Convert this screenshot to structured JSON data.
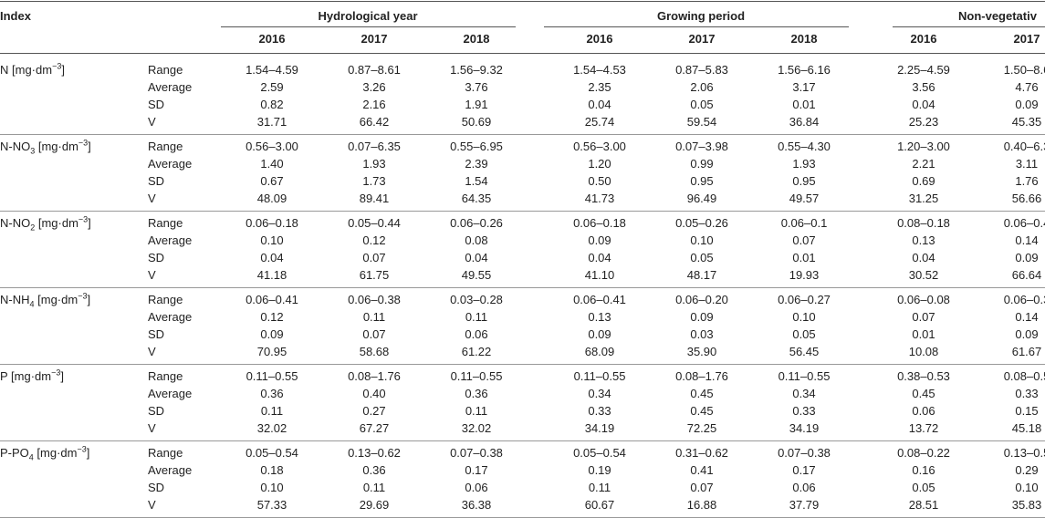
{
  "header": {
    "index": "Index",
    "groups": [
      {
        "title": "Hydrological year",
        "years": [
          "2016",
          "2017",
          "2018"
        ]
      },
      {
        "title": "Growing period",
        "years": [
          "2016",
          "2017",
          "2018"
        ]
      },
      {
        "title": "Non-vegetativ",
        "years": [
          "2016",
          "2017"
        ]
      }
    ]
  },
  "table": {
    "groups": [
      {
        "label": {
          "base": "N",
          "sub": "",
          "unit": " [mg·dm",
          "exp": "−3",
          "close": "]"
        },
        "rows": [
          {
            "stat": "Range",
            "cells": [
              "1.54–4.59",
              "0.87–8.61",
              "1.56–9.32",
              "1.54–4.53",
              "0.87–5.83",
              "1.56–6.16",
              "2.25–4.59",
              "1.50–8.6"
            ]
          },
          {
            "stat": "Average",
            "cells": [
              "2.59",
              "3.26",
              "3.76",
              "2.35",
              "2.06",
              "3.17",
              "3.56",
              "4.76"
            ]
          },
          {
            "stat": "SD",
            "cells": [
              "0.82",
              "2.16",
              "1.91",
              "0.04",
              "0.05",
              "0.01",
              "0.04",
              "0.09"
            ]
          },
          {
            "stat": "V",
            "cells": [
              "31.71",
              "66.42",
              "50.69",
              "25.74",
              "59.54",
              "36.84",
              "25.23",
              "45.35"
            ]
          }
        ]
      },
      {
        "label": {
          "base": "N-NO",
          "sub": "3",
          "unit": " [mg·dm",
          "exp": "−3",
          "close": "]"
        },
        "rows": [
          {
            "stat": "Range",
            "cells": [
              "0.56–3.00",
              "0.07–6.35",
              "0.55–6.95",
              "0.56–3.00",
              "0.07–3.98",
              "0.55–4.30",
              "1.20–3.00",
              "0.40–6.3"
            ]
          },
          {
            "stat": "Average",
            "cells": [
              "1.40",
              "1.93",
              "2.39",
              "1.20",
              "0.99",
              "1.93",
              "2.21",
              "3.11"
            ]
          },
          {
            "stat": "SD",
            "cells": [
              "0.67",
              "1.73",
              "1.54",
              "0.50",
              "0.95",
              "0.95",
              "0.69",
              "1.76"
            ]
          },
          {
            "stat": "V",
            "cells": [
              "48.09",
              "89.41",
              "64.35",
              "41.73",
              "96.49",
              "49.57",
              "31.25",
              "56.66"
            ]
          }
        ]
      },
      {
        "label": {
          "base": "N-NO",
          "sub": "2",
          "unit": " [mg·dm",
          "exp": "−3",
          "close": "]"
        },
        "rows": [
          {
            "stat": "Range",
            "cells": [
              "0.06–0.18",
              "0.05–0.44",
              "0.06–0.26",
              "0.06–0.18",
              "0.05–0.26",
              "0.06–0.1",
              "0.08–0.18",
              "0.06–0.4"
            ]
          },
          {
            "stat": "Average",
            "cells": [
              "0.10",
              "0.12",
              "0.08",
              "0.09",
              "0.10",
              "0.07",
              "0.13",
              "0.14"
            ]
          },
          {
            "stat": "SD",
            "cells": [
              "0.04",
              "0.07",
              "0.04",
              "0.04",
              "0.05",
              "0.01",
              "0.04",
              "0.09"
            ]
          },
          {
            "stat": "V",
            "cells": [
              "41.18",
              "61.75",
              "49.55",
              "41.10",
              "48.17",
              "19.93",
              "30.52",
              "66.64"
            ]
          }
        ]
      },
      {
        "label": {
          "base": "N-NH",
          "sub": "4",
          "unit": " [mg·dm",
          "exp": "−3",
          "close": "]"
        },
        "rows": [
          {
            "stat": "Range",
            "cells": [
              "0.06–0.41",
              "0.06–0.38",
              "0.03–0.28",
              "0.06–0.41",
              "0.06–0.20",
              "0.06–0.27",
              "0.06–0.08",
              "0.06–0.3"
            ]
          },
          {
            "stat": "Average",
            "cells": [
              "0.12",
              "0.11",
              "0.11",
              "0.13",
              "0.09",
              "0.10",
              "0.07",
              "0.14"
            ]
          },
          {
            "stat": "SD",
            "cells": [
              "0.09",
              "0.07",
              "0.06",
              "0.09",
              "0.03",
              "0.05",
              "0.01",
              "0.09"
            ]
          },
          {
            "stat": "V",
            "cells": [
              "70.95",
              "58.68",
              "61.22",
              "68.09",
              "35.90",
              "56.45",
              "10.08",
              "61.67"
            ]
          }
        ]
      },
      {
        "label": {
          "base": "P",
          "sub": "",
          "unit": " [mg·dm",
          "exp": "−3",
          "close": "]"
        },
        "rows": [
          {
            "stat": "Range",
            "cells": [
              "0.11–0.55",
              "0.08–1.76",
              "0.11–0.55",
              "0.11–0.55",
              "0.08–1.76",
              "0.11–0.55",
              "0.38–0.53",
              "0.08–0.5"
            ]
          },
          {
            "stat": "Average",
            "cells": [
              "0.36",
              "0.40",
              "0.36",
              "0.34",
              "0.45",
              "0.34",
              "0.45",
              "0.33"
            ]
          },
          {
            "stat": "SD",
            "cells": [
              "0.11",
              "0.27",
              "0.11",
              "0.33",
              "0.45",
              "0.33",
              "0.06",
              "0.15"
            ]
          },
          {
            "stat": "V",
            "cells": [
              "32.02",
              "67.27",
              "32.02",
              "34.19",
              "72.25",
              "34.19",
              "13.72",
              "45.18"
            ]
          }
        ]
      },
      {
        "label": {
          "base": "P-PO",
          "sub": "4",
          "unit": " [mg·dm",
          "exp": "−3",
          "close": "]"
        },
        "rows": [
          {
            "stat": "Range",
            "cells": [
              "0.05–0.54",
              "0.13–0.62",
              "0.07–0.38",
              "0.05–0.54",
              "0.31–0.62",
              "0.07–0.38",
              "0.08–0.22",
              "0.13–0.5"
            ]
          },
          {
            "stat": "Average",
            "cells": [
              "0.18",
              "0.36",
              "0.17",
              "0.19",
              "0.41",
              "0.17",
              "0.16",
              "0.29"
            ]
          },
          {
            "stat": "SD",
            "cells": [
              "0.10",
              "0.11",
              "0.06",
              "0.11",
              "0.07",
              "0.06",
              "0.05",
              "0.10"
            ]
          },
          {
            "stat": "V",
            "cells": [
              "57.33",
              "29.69",
              "36.38",
              "60.67",
              "16.88",
              "37.79",
              "28.51",
              "35.83"
            ]
          }
        ]
      }
    ]
  }
}
